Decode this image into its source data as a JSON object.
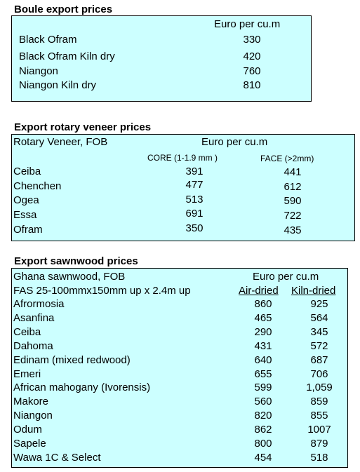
{
  "boule": {
    "title": "Boule export prices",
    "unit_header": "Euro per cu.m",
    "rows": [
      {
        "name": "Black Ofram",
        "price": "330"
      },
      {
        "name": "Black Ofram  Kiln dry",
        "price": "420"
      },
      {
        "name": "Niangon",
        "price": "760"
      },
      {
        "name": "Niangon Kiln dry",
        "price": "810"
      }
    ]
  },
  "veneer": {
    "title": "Export rotary veneer prices",
    "label": "Rotary Veneer,  FOB",
    "unit_header": "Euro  per cu.m",
    "col_core": "CORE (1-1.9 mm )",
    "col_face": "FACE (>2mm)",
    "rows": [
      {
        "name": "Ceiba",
        "core": "391",
        "face": "441"
      },
      {
        "name": "Chenchen",
        "core": "477",
        "face": "612"
      },
      {
        "name": "Ogea",
        "core": "513",
        "face": "590"
      },
      {
        "name": "Essa",
        "core": "691",
        "face": "722"
      },
      {
        "name": "Ofram",
        "core": "350",
        "face": "435"
      }
    ]
  },
  "sawnwood": {
    "title": "Export sawnwood prices",
    "label": "Ghana sawnwood, FOB",
    "spec": "FAS 25-100mmx150mm up x 2.4m up",
    "unit_header": "Euro per cu.m",
    "col_air": "Air-dried",
    "col_kiln": "Kiln-dried",
    "rows": [
      {
        "name": "Afrormosia",
        "air": "860",
        "kiln": "925"
      },
      {
        "name": "Asanfina",
        "air": "465",
        "kiln": "564"
      },
      {
        "name": "Ceiba",
        "air": "290",
        "kiln": "345"
      },
      {
        "name": "Dahoma",
        "air": "431",
        "kiln": "572"
      },
      {
        "name": "Edinam (mixed redwood)",
        "air": "640",
        "kiln": "687"
      },
      {
        "name": "Emeri",
        "air": "655",
        "kiln": "706"
      },
      {
        "name": "African mahogany (Ivorensis)",
        "air": "599",
        "kiln": "1,059"
      },
      {
        "name": "Makore",
        "air": "560",
        "kiln": "859"
      },
      {
        "name": "Niangon",
        "air": "820",
        "kiln": "855"
      },
      {
        "name": "Odum",
        "air": "862",
        "kiln": "1007"
      },
      {
        "name": "Sapele",
        "air": "800",
        "kiln": "879"
      },
      {
        "name": "Wawa 1C & Select",
        "air": "454",
        "kiln": "518"
      }
    ]
  }
}
